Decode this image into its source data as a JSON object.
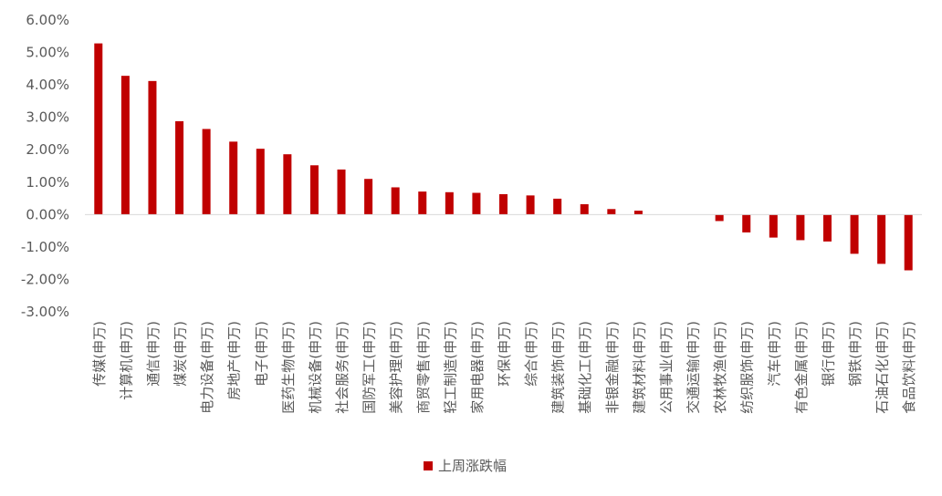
{
  "chart_data": {
    "type": "bar",
    "series": [
      {
        "name": "上周涨跌幅",
        "color": "#C00000",
        "values": [
          5.28,
          4.28,
          4.12,
          2.88,
          2.64,
          2.25,
          2.03,
          1.86,
          1.52,
          1.39,
          1.1,
          0.84,
          0.71,
          0.69,
          0.67,
          0.63,
          0.59,
          0.49,
          0.32,
          0.17,
          0.12,
          0.0,
          0.0,
          -0.2,
          -0.55,
          -0.71,
          -0.79,
          -0.83,
          -1.21,
          -1.52,
          -1.72
        ]
      }
    ],
    "categories": [
      "传媒(申万)",
      "计算机(申万)",
      "通信(申万)",
      "煤炭(申万)",
      "电力设备(申万)",
      "房地产(申万)",
      "电子(申万)",
      "医药生物(申万)",
      "机械设备(申万)",
      "社会服务(申万)",
      "国防军工(申万)",
      "美容护理(申万)",
      "商贸零售(申万)",
      "轻工制造(申万)",
      "家用电器(申万)",
      "环保(申万)",
      "综合(申万)",
      "建筑装饰(申万)",
      "基础化工(申万)",
      "非银金融(申万)",
      "建筑材料(申万)",
      "公用事业(申万)",
      "交通运输(申万)",
      "农林牧渔(申万)",
      "纺织服饰(申万)",
      "汽车(申万)",
      "有色金属(申万)",
      "银行(申万)",
      "钢铁(申万)",
      "石油石化(申万)",
      "食品饮料(申万)"
    ],
    "ylim": [
      -3,
      6
    ],
    "yticks": [
      "6.00%",
      "5.00%",
      "4.00%",
      "3.00%",
      "2.00%",
      "1.00%",
      "0.00%",
      "-1.00%",
      "-2.00%",
      "-3.00%"
    ],
    "grid": false,
    "legend": "bottom-center"
  }
}
